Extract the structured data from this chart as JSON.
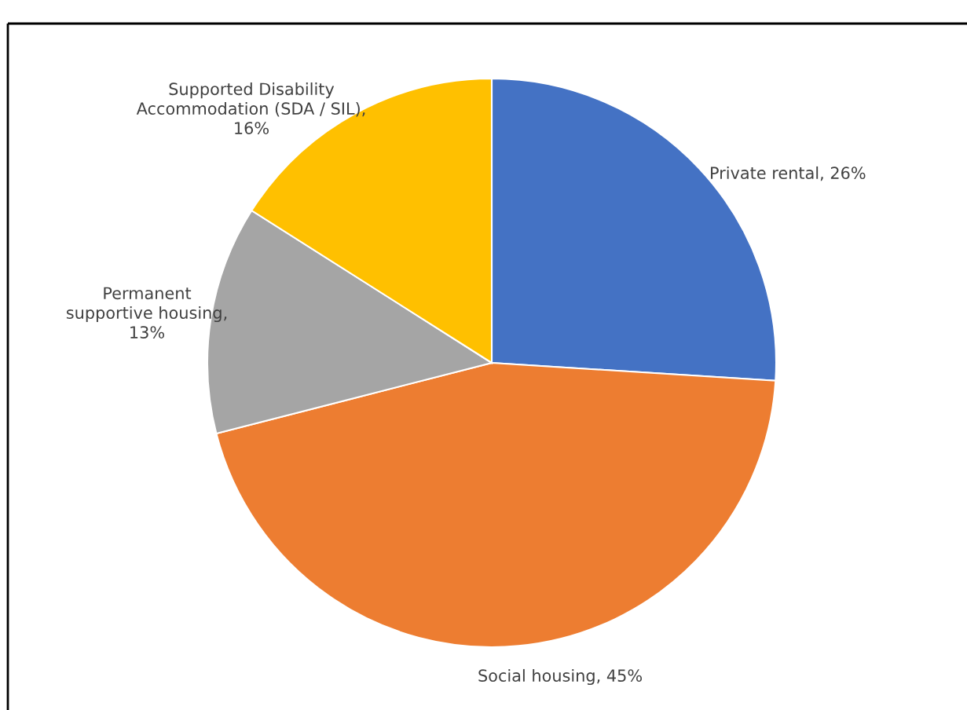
{
  "chart_data": {
    "type": "pie",
    "categories": [
      "Private rental",
      "Social housing",
      "Permanent supportive housing",
      "Supported Disability Accommodation (SDA / SIL)"
    ],
    "values": [
      26,
      45,
      13,
      16
    ],
    "value_labels": [
      ", 26%",
      ", 45%",
      ", 13%",
      ", 16%"
    ],
    "colors": [
      "#4472c4",
      "#ed7d31",
      "#a5a5a5",
      "#ffc000"
    ]
  }
}
